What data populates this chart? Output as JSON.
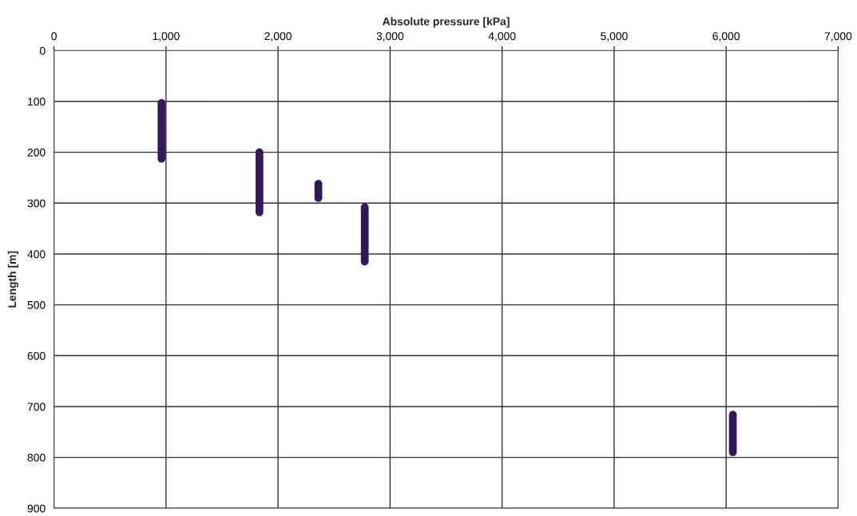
{
  "chart_data": {
    "type": "line",
    "xlabel": "Absolute pressure [kPa]",
    "ylabel": "Length [m]",
    "xlim": [
      0,
      7000
    ],
    "ylim": [
      900,
      0
    ],
    "xticks": [
      0,
      {
        "value": 1000,
        "label": "1,000"
      },
      {
        "value": 2000,
        "label": "2,000"
      },
      {
        "value": 3000,
        "label": "3,000"
      },
      {
        "value": 4000,
        "label": "4,000"
      },
      {
        "value": 5000,
        "label": "5,000"
      },
      {
        "value": 6000,
        "label": "6,000"
      },
      {
        "value": 7000,
        "label": "7,000"
      }
    ],
    "yticks": [
      0,
      100,
      200,
      300,
      400,
      500,
      600,
      700,
      800,
      900
    ],
    "grid": true,
    "line_style": "solid",
    "series": [
      {
        "color": "#33195c",
        "x": [
          960,
          960
        ],
        "values": [
          103,
          213
        ]
      },
      {
        "color": "#33195c",
        "x": [
          1834,
          1834
        ],
        "values": [
          200,
          318
        ]
      },
      {
        "color": "#33195c",
        "x": [
          2360,
          2360
        ],
        "values": [
          262,
          290
        ]
      },
      {
        "color": "#33195c",
        "x": [
          2774,
          2774
        ],
        "values": [
          308,
          415
        ]
      },
      {
        "color": "#33195c",
        "x": [
          6060,
          6060
        ],
        "values": [
          716,
          790
        ]
      }
    ]
  }
}
